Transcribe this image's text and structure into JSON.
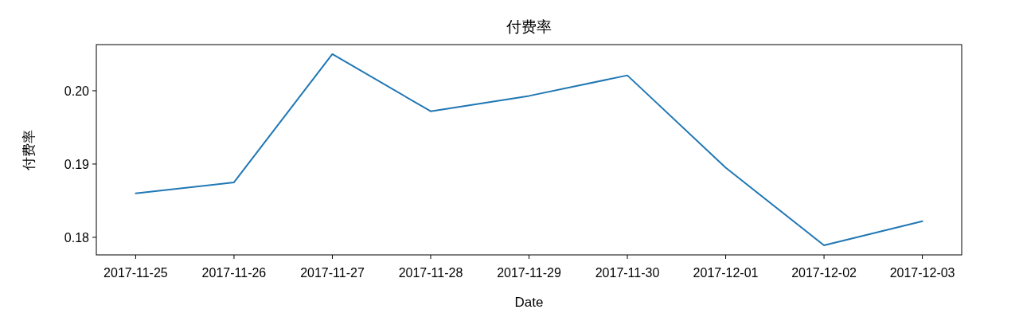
{
  "chart_data": {
    "type": "line",
    "title": "付费率",
    "xlabel": "Date",
    "ylabel": "付费率",
    "x": [
      "2017-11-25",
      "2017-11-26",
      "2017-11-27",
      "2017-11-28",
      "2017-11-29",
      "2017-11-30",
      "2017-12-01",
      "2017-12-02",
      "2017-12-03"
    ],
    "series": [
      {
        "color": "#1f77b4",
        "values": [
          0.186,
          0.1875,
          0.205,
          0.1972,
          0.1993,
          0.2021,
          0.1895,
          0.1789,
          0.1822
        ]
      }
    ],
    "xlim": [
      "2017-11-24T14:24",
      "2017-12-03T09:36"
    ],
    "xticks": [
      "2017-11-25",
      "2017-11-26",
      "2017-11-27",
      "2017-11-28",
      "2017-11-29",
      "2017-11-30",
      "2017-12-01",
      "2017-12-02",
      "2017-12-03"
    ],
    "ylim": [
      0.1776,
      0.2063
    ],
    "yticks": [
      {
        "value": 0.18,
        "label": "0.18"
      },
      {
        "value": 0.19,
        "label": "0.19"
      },
      {
        "value": 0.2,
        "label": "0.20"
      }
    ],
    "grid": false,
    "marker": "none",
    "line_style": "solid"
  }
}
